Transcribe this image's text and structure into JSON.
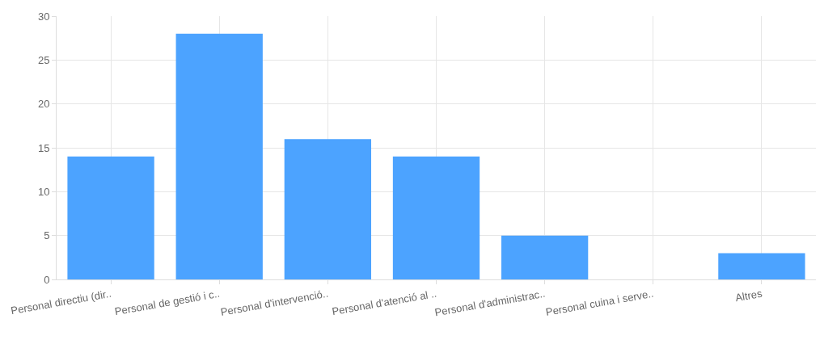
{
  "chart_data": {
    "type": "bar",
    "categories": [
      "Personal directiu (dir..",
      "Personal de gestió i c..",
      "Personal d'intervenció..",
      "Personal d'atenció al ..",
      "Personal d'administrac..",
      "Personal cuina i serve..",
      "Altres"
    ],
    "values": [
      14,
      28,
      16,
      14,
      5,
      0,
      3
    ],
    "color": "#4ca3ff",
    "ylim": [
      0,
      30
    ],
    "yticks": [
      0,
      5,
      10,
      15,
      20,
      25,
      30
    ],
    "grid": true
  }
}
